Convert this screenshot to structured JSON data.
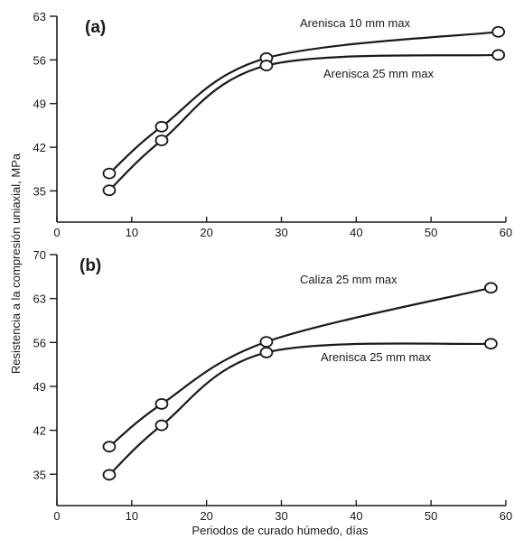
{
  "y_axis_title": "Resistencia a la compresión uniaxial, MPa",
  "x_axis_title": "Periodos de curado húmedo, días",
  "chart_data": [
    {
      "type": "line",
      "panel_label": "(a)",
      "xlim": [
        0,
        60
      ],
      "ylim": [
        30,
        63
      ],
      "xticks": [
        0,
        10,
        20,
        30,
        40,
        50,
        60
      ],
      "yticks": [
        35,
        42,
        49,
        56,
        63
      ],
      "grid": false,
      "series": [
        {
          "name": "Arenisca 10 mm max",
          "points": [
            [
              7,
              37.8
            ],
            [
              14,
              45.3
            ],
            [
              28,
              56.3
            ],
            [
              59,
              60.5
            ]
          ]
        },
        {
          "name": "Arenisca 25 mm max",
          "points": [
            [
              7,
              35.1
            ],
            [
              14,
              43.1
            ],
            [
              28,
              55.1
            ],
            [
              59,
              56.8
            ]
          ]
        }
      ]
    },
    {
      "type": "line",
      "panel_label": "(b)",
      "xlim": [
        0,
        60
      ],
      "ylim": [
        30,
        70
      ],
      "xticks": [
        0,
        10,
        20,
        30,
        40,
        50,
        60
      ],
      "yticks": [
        35,
        42,
        49,
        56,
        63,
        70
      ],
      "grid": false,
      "series": [
        {
          "name": "Caliza 25 mm  max",
          "points": [
            [
              7,
              39.4
            ],
            [
              14,
              46.2
            ],
            [
              28,
              56.1
            ],
            [
              58,
              64.7
            ]
          ]
        },
        {
          "name": "Arenisca 25 mm  max",
          "points": [
            [
              7,
              34.9
            ],
            [
              14,
              42.8
            ],
            [
              28,
              54.4
            ],
            [
              58,
              55.8
            ]
          ]
        }
      ]
    }
  ]
}
